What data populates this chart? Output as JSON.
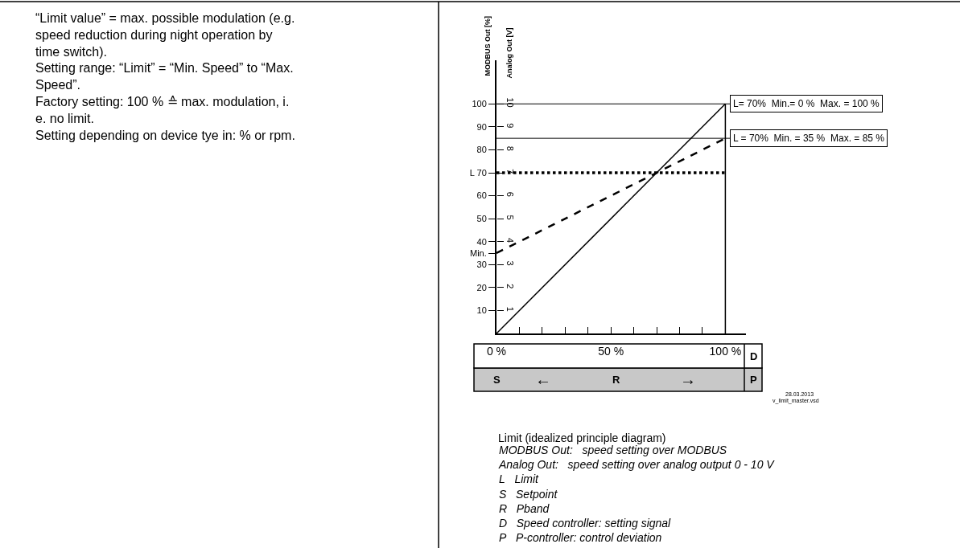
{
  "chart_data": {
    "type": "line",
    "ylabel": "MODBUS Out [%]",
    "y2label": "Analog Out [V]",
    "x": [
      0,
      100
    ],
    "series": [
      {
        "color": "#000000",
        "line_style": "solid",
        "values": [
          0,
          100
        ]
      },
      {
        "color": "#000000",
        "line_style": "dashed",
        "values": [
          35,
          85
        ]
      },
      {
        "color": "#000000",
        "line_style": "dotted",
        "values": [
          70,
          70
        ]
      }
    ],
    "xlim": [
      0,
      109
    ],
    "xticks": [
      {
        "value": 0,
        "label": "0 %"
      },
      {
        "value": 10,
        "label": null
      },
      {
        "value": 20,
        "label": null
      },
      {
        "value": 30,
        "label": null
      },
      {
        "value": 40,
        "label": null
      },
      {
        "value": 50,
        "label": "50 %"
      },
      {
        "value": 60,
        "label": null
      },
      {
        "value": 70,
        "label": null
      },
      {
        "value": 80,
        "label": null
      },
      {
        "value": 90,
        "label": null
      },
      {
        "value": 100,
        "label": "100 %"
      }
    ],
    "ylim": [
      0,
      119
    ],
    "yticks": [
      10,
      20,
      30,
      {
        "value": 35,
        "label": "Min."
      },
      40,
      50,
      60,
      {
        "value": 70,
        "label": "L 70"
      },
      80,
      90,
      100
    ],
    "y2lim": [
      0,
      11.9
    ],
    "y2ticks": [
      1,
      2,
      3,
      4,
      5,
      6,
      7,
      8,
      9,
      10
    ],
    "ref_lines": [
      {
        "axis": "y",
        "value": 100,
        "label": "L= 70%  Min.= 0 %  Max. = 100 %"
      },
      {
        "axis": "y",
        "value": 85,
        "label": "L = 70%  Min. = 35 %  Max. = 85 %"
      },
      {
        "axis": "x",
        "value": 100,
        "label": null
      }
    ],
    "annotations": [
      "“Limit value” = max. possible modulation (e.g.\nspeed reduction during night operation by\ntime switch).\nSetting range: “Limit” = “Min. Speed” to “Max.\nSpeed”.\nFactory setting: 100 % ≙ max. modulation, i.\ne. no limit.\nSetting depending on device tye in: % or rpm.",
      "D",
      "S",
      "←",
      "R",
      "→",
      "P",
      "28.03.2013",
      "v_limit_master.vsd",
      "Limit (idealized principle diagram)",
      "MODBUS Out:   speed setting over MODBUS\nAnalog Out:   speed setting over analog output 0 - 10 V\nL   Limit\nS   Setpoint\nR   Pband\nD   Speed controller: setting signal\nP   P-controller: control deviation"
    ],
    "legend": false,
    "marker": "none"
  }
}
